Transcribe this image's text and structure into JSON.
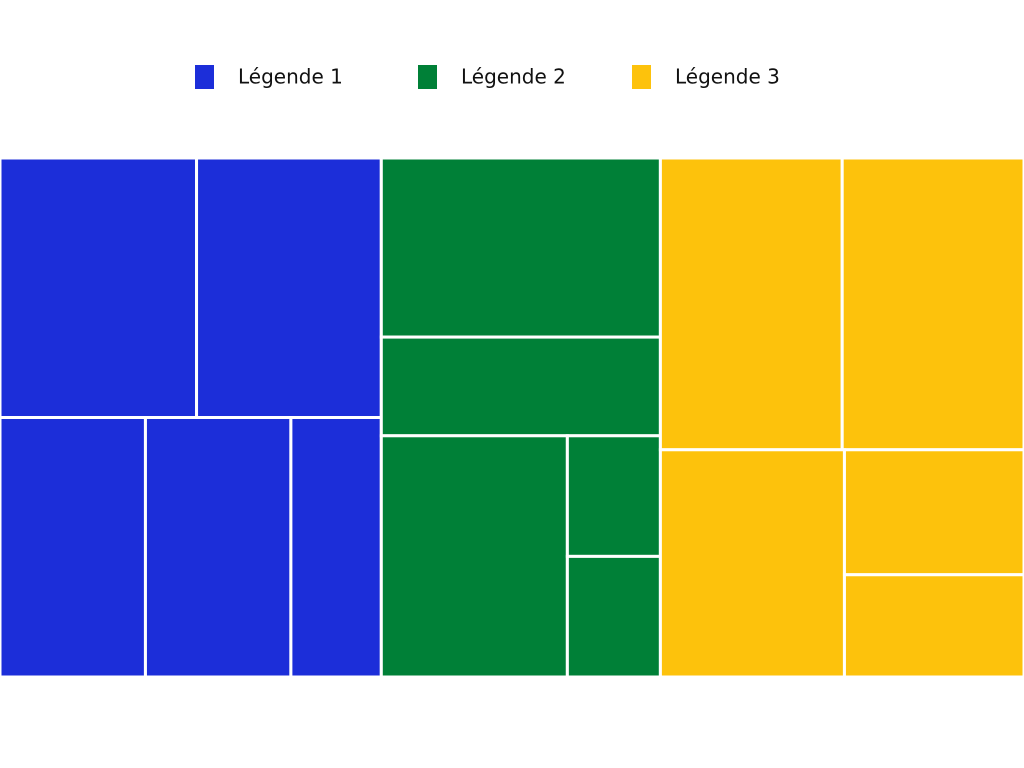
{
  "chart_data": {
    "type": "treemap",
    "series": [
      {
        "name": "Légende 1",
        "color": "#1c2ed9",
        "values": [
          50,
          47,
          37,
          37,
          23
        ]
      },
      {
        "name": "Légende 2",
        "color": "#008037",
        "values": [
          49,
          27,
          44,
          11,
          11
        ]
      },
      {
        "name": "Légende 3",
        "color": "#fdc20c",
        "values": [
          52,
          52,
          41,
          22,
          18
        ]
      }
    ]
  }
}
